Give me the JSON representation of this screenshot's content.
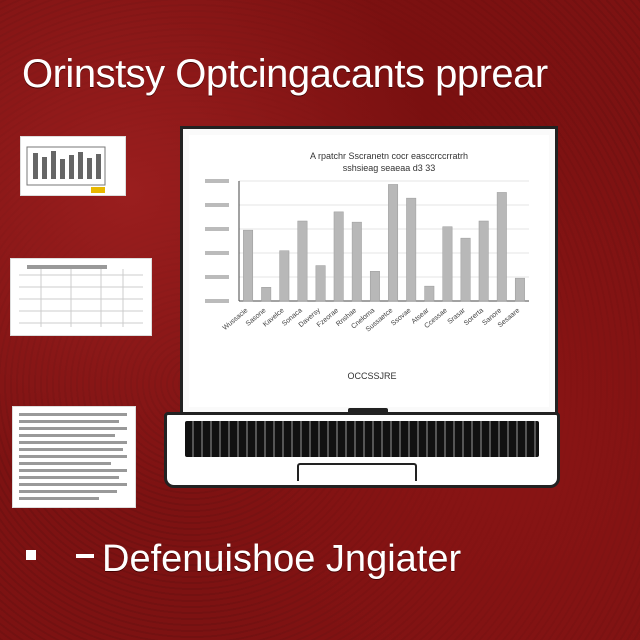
{
  "header": {
    "title": "Orinstsy Optcingacants pprear"
  },
  "footer": {
    "bullet_text": "Defenuishoe Jngiater"
  },
  "colors": {
    "background": "#7d1212",
    "bar": "#b8b8b8",
    "text": "#ffffff"
  },
  "chart_data": {
    "type": "bar",
    "title": "A rpatchr Sscranetn cocr easccrccrratrh",
    "subtitle": "sshsieag seaeaa d3 33",
    "xlabel": "OCCSSJRE",
    "ylabel": "",
    "ylim": [
      0,
      100
    ],
    "grid": true,
    "categories": [
      "Wussacie",
      "Sasone",
      "Kavelce",
      "Sonaca",
      "Daversy",
      "Fzeorae",
      "Rnshae",
      "Cneloma",
      "Sussaetce",
      "Ssovae",
      "Atsear",
      "Ccessae",
      "Srasar",
      "Sorerta",
      "Sanore",
      "Sesaare"
    ],
    "values": [
      62,
      12,
      44,
      70,
      31,
      78,
      69,
      26,
      102,
      90,
      13,
      65,
      55,
      70,
      95,
      20
    ]
  }
}
